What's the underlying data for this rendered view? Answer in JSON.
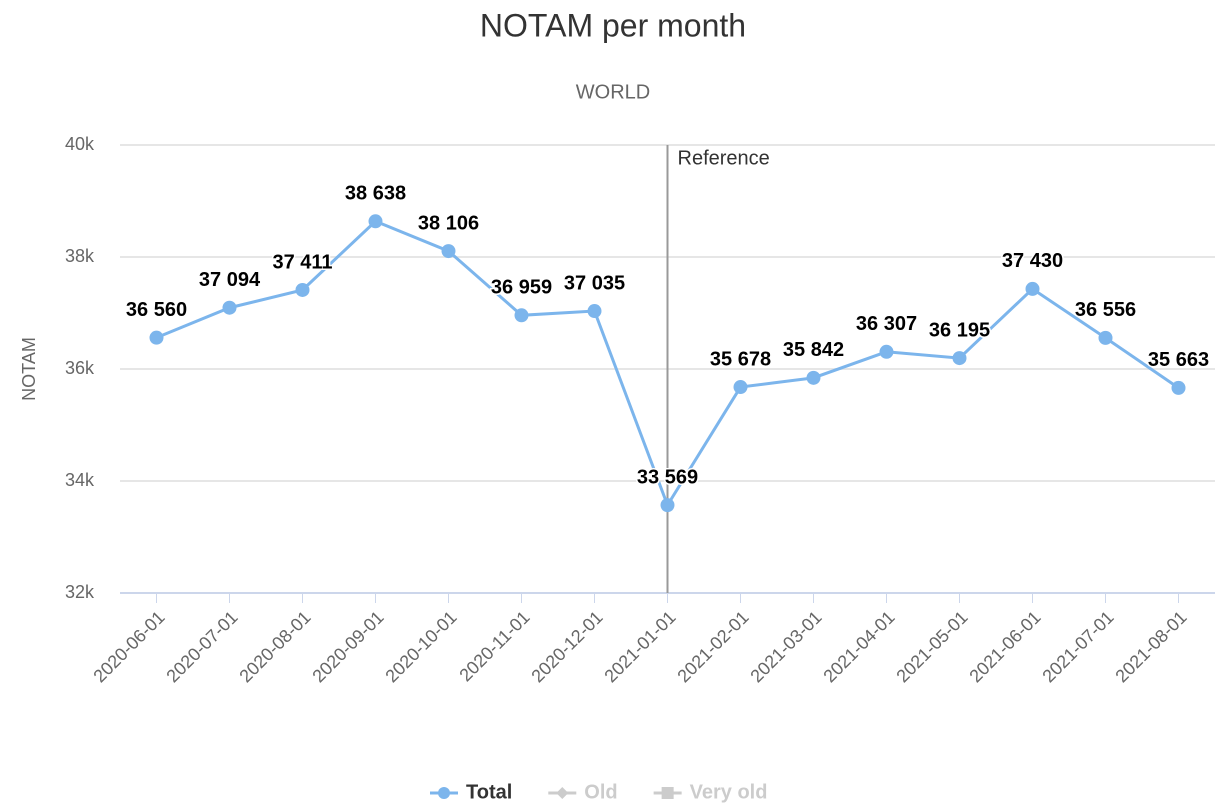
{
  "chart_data": {
    "type": "line",
    "title": "NOTAM per month",
    "subtitle": "WORLD",
    "y_label": "NOTAM",
    "categories": [
      "2020-06-01",
      "2020-07-01",
      "2020-08-01",
      "2020-09-01",
      "2020-10-01",
      "2020-11-01",
      "2020-12-01",
      "2021-01-01",
      "2021-02-01",
      "2021-03-01",
      "2021-04-01",
      "2021-05-01",
      "2021-06-01",
      "2021-07-01",
      "2021-08-01"
    ],
    "series": [
      {
        "name": "Total",
        "color": "#7cb5ec",
        "marker": "circle",
        "visible": true,
        "values": [
          36560,
          37094,
          37411,
          38638,
          38106,
          36959,
          37035,
          33569,
          35678,
          35842,
          36307,
          36195,
          37430,
          36556,
          35663
        ],
        "value_labels": [
          "36 560",
          "37 094",
          "37 411",
          "38 638",
          "38 106",
          "36 959",
          "37 035",
          "33 569",
          "35 678",
          "35 842",
          "36 307",
          "36 195",
          "37 430",
          "36 556",
          "35 663"
        ]
      },
      {
        "name": "Old",
        "color": "#cccccc",
        "marker": "diamond",
        "visible": false
      },
      {
        "name": "Very old",
        "color": "#cccccc",
        "marker": "square",
        "visible": false
      }
    ],
    "ylim": [
      32000,
      40000
    ],
    "yticks": [
      {
        "value": 32000,
        "label": "32k"
      },
      {
        "value": 34000,
        "label": "34k"
      },
      {
        "value": 36000,
        "label": "36k"
      },
      {
        "value": 38000,
        "label": "38k"
      },
      {
        "value": 40000,
        "label": "40k"
      }
    ],
    "grid": true,
    "annotations": [
      {
        "x": "2021-01-01",
        "label": "Reference"
      }
    ],
    "legend": "bottom"
  }
}
